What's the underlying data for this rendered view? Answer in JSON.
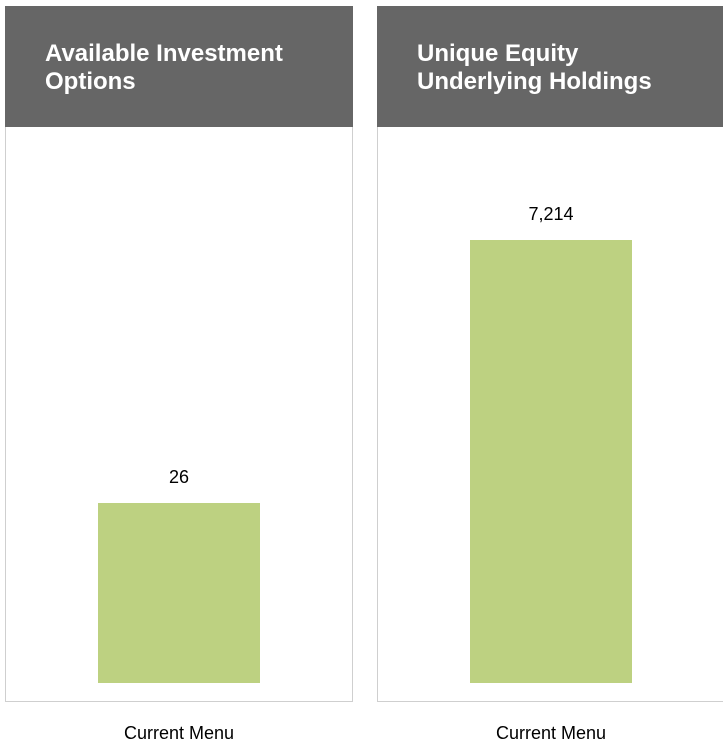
{
  "chart_data": [
    {
      "type": "bar",
      "title": "Available Investment Options",
      "categories": [
        "Current Menu"
      ],
      "values": [
        26
      ],
      "color": "#bdd181",
      "ylim": [
        0,
        80
      ]
    },
    {
      "type": "bar",
      "title": "Unique Equity Underlying Holdings",
      "categories": [
        "Current Menu"
      ],
      "values": [
        7214
      ],
      "value_labels": [
        "7,214"
      ],
      "color": "#bdd181",
      "ylim": [
        0,
        9000
      ]
    }
  ]
}
